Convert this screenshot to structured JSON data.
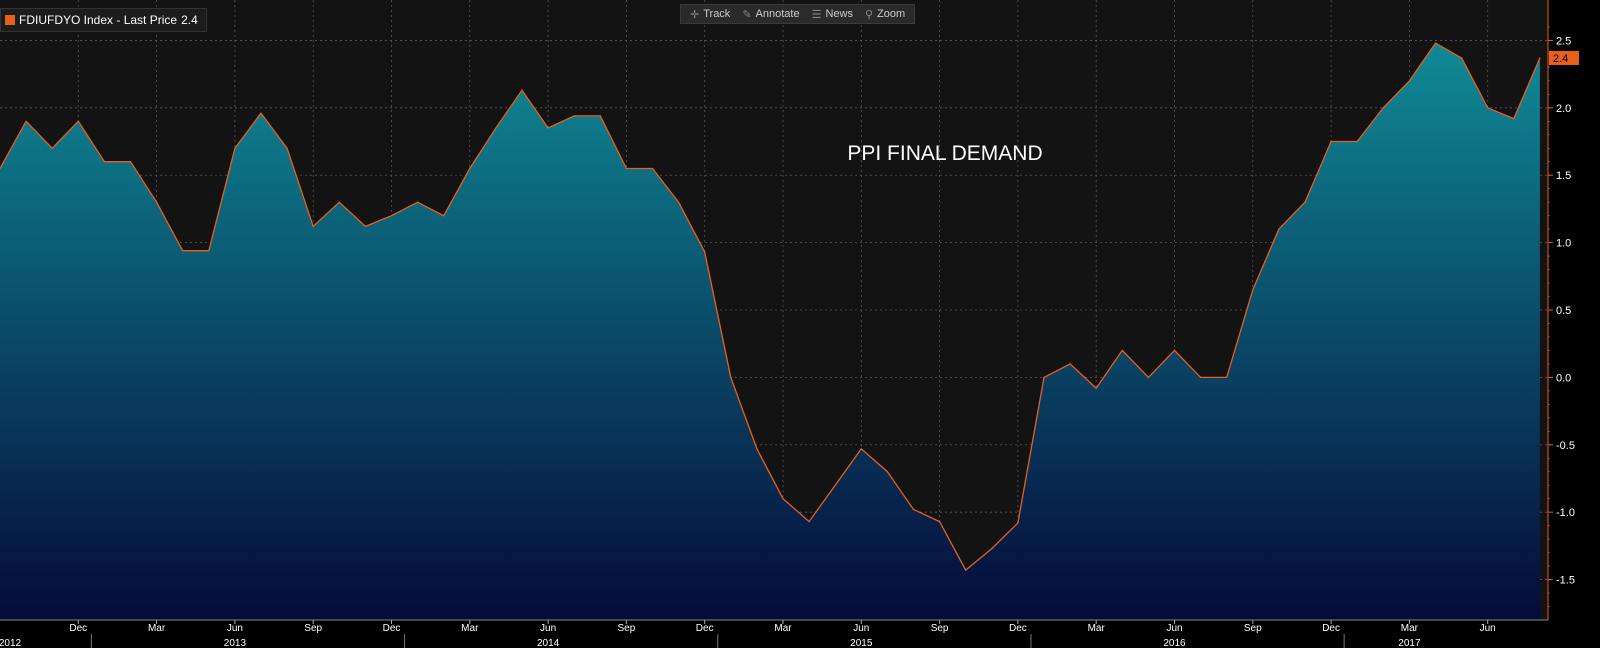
{
  "legend": {
    "ticker": "FDIUFDYO Index",
    "sep": " - ",
    "last_label": "Last Price",
    "last_value": "2.4"
  },
  "toolbar": {
    "track": "Track",
    "annotate": "Annotate",
    "news": "News",
    "zoom": "Zoom"
  },
  "icons": {
    "track": "crosshair-icon",
    "annotate": "pencil-icon",
    "news": "list-icon",
    "zoom": "magnifier-icon"
  },
  "colors": {
    "line": "#e8601c",
    "fill_top": "#0f8a96",
    "fill_bottom": "#050a3a",
    "background": "#131313",
    "axis_text": "#ffffff"
  },
  "chart_data": {
    "type": "area",
    "title": "PPI FINAL DEMAND",
    "xlabel": "",
    "ylabel": "",
    "ylim": [
      -1.8,
      2.8
    ],
    "yticks": [
      "-1.5",
      "-1.0",
      "-0.5",
      "0.0",
      "0.5",
      "1.0",
      "1.5",
      "2.0",
      "2.5"
    ],
    "x": [
      "2012-09",
      "2012-10",
      "2012-11",
      "2012-12",
      "2013-01",
      "2013-02",
      "2013-03",
      "2013-04",
      "2013-05",
      "2013-06",
      "2013-07",
      "2013-08",
      "2013-09",
      "2013-10",
      "2013-11",
      "2013-12",
      "2014-01",
      "2014-02",
      "2014-03",
      "2014-04",
      "2014-05",
      "2014-06",
      "2014-07",
      "2014-08",
      "2014-09",
      "2014-10",
      "2014-11",
      "2014-12",
      "2015-01",
      "2015-02",
      "2015-03",
      "2015-04",
      "2015-05",
      "2015-06",
      "2015-07",
      "2015-08",
      "2015-09",
      "2015-10",
      "2015-11",
      "2015-12",
      "2016-01",
      "2016-02",
      "2016-03",
      "2016-04",
      "2016-05",
      "2016-06",
      "2016-07",
      "2016-08",
      "2016-09",
      "2016-10",
      "2016-11",
      "2016-12",
      "2017-01",
      "2017-02",
      "2017-03",
      "2017-04",
      "2017-05",
      "2017-06",
      "2017-07",
      "2017-08"
    ],
    "series": [
      {
        "name": "FDIUFDYO Index",
        "values": [
          1.55,
          1.9,
          1.7,
          1.9,
          1.6,
          1.6,
          1.3,
          0.94,
          0.94,
          1.7,
          1.96,
          1.7,
          1.12,
          1.3,
          1.12,
          1.2,
          1.3,
          1.2,
          1.55,
          1.85,
          2.13,
          1.85,
          1.94,
          1.94,
          1.55,
          1.55,
          1.3,
          0.93,
          0.0,
          -0.53,
          -0.9,
          -1.07,
          -0.8,
          -0.53,
          -0.7,
          -0.98,
          -1.07,
          -1.43,
          -1.27,
          -1.08,
          0.0,
          0.1,
          -0.08,
          0.2,
          0.0,
          0.2,
          0.0,
          0.0,
          0.65,
          1.1,
          1.3,
          1.75,
          1.75,
          2.0,
          2.2,
          2.48,
          2.37,
          2.0,
          1.92,
          2.37
        ]
      }
    ],
    "month_labels": [
      {
        "date": "2012-12",
        "label": "Dec"
      },
      {
        "date": "2013-03",
        "label": "Mar"
      },
      {
        "date": "2013-06",
        "label": "Jun"
      },
      {
        "date": "2013-09",
        "label": "Sep"
      },
      {
        "date": "2013-12",
        "label": "Dec"
      },
      {
        "date": "2014-03",
        "label": "Mar"
      },
      {
        "date": "2014-06",
        "label": "Jun"
      },
      {
        "date": "2014-09",
        "label": "Sep"
      },
      {
        "date": "2014-12",
        "label": "Dec"
      },
      {
        "date": "2015-03",
        "label": "Mar"
      },
      {
        "date": "2015-06",
        "label": "Jun"
      },
      {
        "date": "2015-09",
        "label": "Sep"
      },
      {
        "date": "2015-12",
        "label": "Dec"
      },
      {
        "date": "2016-03",
        "label": "Mar"
      },
      {
        "date": "2016-06",
        "label": "Jun"
      },
      {
        "date": "2016-09",
        "label": "Sep"
      },
      {
        "date": "2016-12",
        "label": "Dec"
      },
      {
        "date": "2017-03",
        "label": "Mar"
      },
      {
        "date": "2017-06",
        "label": "Jun"
      }
    ],
    "year_labels": [
      {
        "date": "2012-09",
        "label": "2012"
      },
      {
        "date": "2013-06",
        "label": "2013"
      },
      {
        "date": "2014-06",
        "label": "2014"
      },
      {
        "date": "2015-06",
        "label": "2015"
      },
      {
        "date": "2016-06",
        "label": "2016"
      },
      {
        "date": "2017-03",
        "label": "2017"
      }
    ],
    "last_value_badge": "2.4",
    "grid": true
  }
}
